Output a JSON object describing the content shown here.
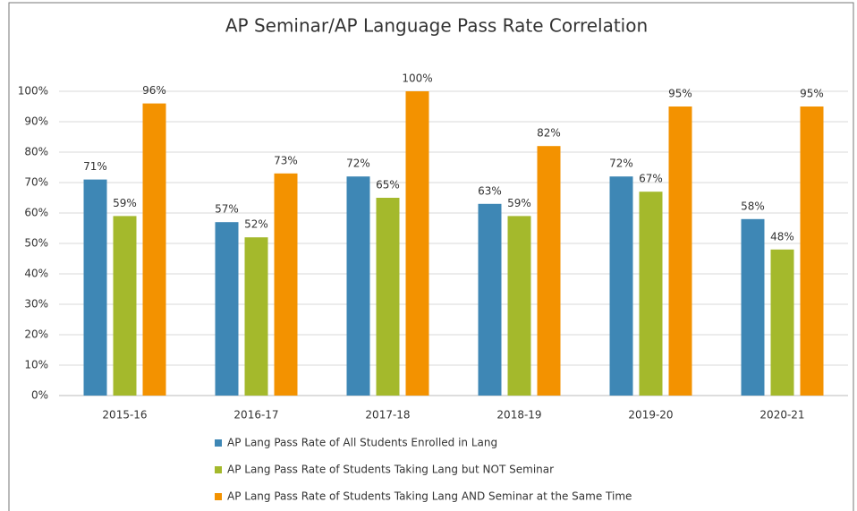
{
  "chart_data": {
    "type": "bar",
    "title": "AP Seminar/AP Language Pass Rate Correlation",
    "categories": [
      "2015-16",
      "2016-17",
      "2017-18",
      "2018-19",
      "2019-20",
      "2020-21"
    ],
    "series": [
      {
        "name": "AP Lang Pass Rate of All Students Enrolled in Lang",
        "color": "#3e87b5",
        "values": [
          71,
          57,
          72,
          63,
          72,
          58
        ],
        "value_labels": [
          "71%",
          "57%",
          "72%",
          "63%",
          "72%",
          "58%"
        ]
      },
      {
        "name": "AP Lang Pass Rate of Students Taking Lang but NOT Seminar",
        "color": "#a4b92c",
        "values": [
          59,
          52,
          65,
          59,
          67,
          48
        ],
        "value_labels": [
          "59%",
          "52%",
          "65%",
          "59%",
          "67%",
          "48%"
        ]
      },
      {
        "name": "AP Lang Pass Rate of Students Taking Lang AND Seminar at the Same Time",
        "color": "#f39200",
        "values": [
          96,
          73,
          100,
          82,
          95,
          95
        ],
        "value_labels": [
          "96%",
          "73%",
          "100%",
          "82%",
          "95%",
          "95%"
        ]
      }
    ],
    "ylim": [
      0,
      100
    ],
    "yticks": [
      {
        "value": 0,
        "label": "0%"
      },
      {
        "value": 10,
        "label": "10%"
      },
      {
        "value": 20,
        "label": "20%"
      },
      {
        "value": 30,
        "label": "30%"
      },
      {
        "value": 40,
        "label": "40%"
      },
      {
        "value": 50,
        "label": "50%"
      },
      {
        "value": 60,
        "label": "60%"
      },
      {
        "value": 70,
        "label": "70%"
      },
      {
        "value": 80,
        "label": "80%"
      },
      {
        "value": 90,
        "label": "90%"
      },
      {
        "value": 100,
        "label": "100%"
      }
    ],
    "grid": true,
    "legend": "bottom"
  }
}
